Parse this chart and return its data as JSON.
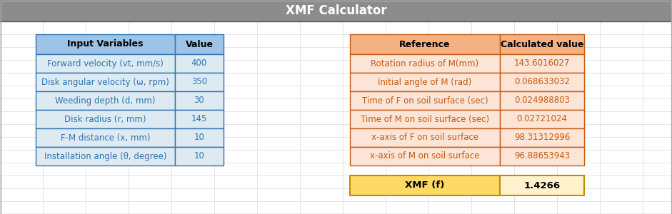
{
  "title": "XMF Calculator",
  "title_bg": "#8c8c8c",
  "title_color": "#ffffff",
  "title_fontsize": 12,
  "input_header": [
    "Input Variables",
    "Value"
  ],
  "input_header_bg": "#9dc3e6",
  "input_header_text_color": "#000000",
  "input_rows": [
    [
      "Forward velocity (vt, mm/s)",
      "400"
    ],
    [
      "Disk angular velocity (ω, rpm)",
      "350"
    ],
    [
      "Weeding depth (d, mm)",
      "30"
    ],
    [
      "Disk radius (r, mm)",
      "145"
    ],
    [
      "F-M distance (x, mm)",
      "10"
    ],
    [
      "Installation angle (θ, degree)",
      "10"
    ]
  ],
  "input_row_bg": "#deeaf1",
  "input_text_color": "#2e74b5",
  "input_border_color": "#2e74b5",
  "ref_header": [
    "Reference",
    "Calculated value"
  ],
  "ref_header_bg": "#f4b183",
  "ref_header_text_color": "#000000",
  "ref_rows": [
    [
      "Rotation radius of M(mm)",
      "143.6016027"
    ],
    [
      "Initial angle of M (rad)",
      "0.068633032"
    ],
    [
      "Time of F on soil surface (sec)",
      "0.024988803"
    ],
    [
      "Time of M on soil surface (sec)",
      "0.02721024"
    ],
    [
      "x-axis of F on soil surface",
      "98.31312996"
    ],
    [
      "x-axis of M on soil surface",
      "96.88653943"
    ]
  ],
  "ref_row_bg": "#fce4d6",
  "ref_text_color": "#c55a11",
  "ref_border_color": "#c55a11",
  "xmf_label": "XMF (f)",
  "xmf_value": "1.4266",
  "xmf_label_bg": "#ffd966",
  "xmf_value_bg": "#fff2cc",
  "xmf_text_color": "#000000",
  "xmf_border_color": "#bf9000",
  "outer_bg": "#ffffff",
  "outer_border_color": "#aaaaaa",
  "grid_line_color": "#d0d0d0",
  "fig_w": 9.41,
  "fig_h": 3.0,
  "dpi": 100
}
